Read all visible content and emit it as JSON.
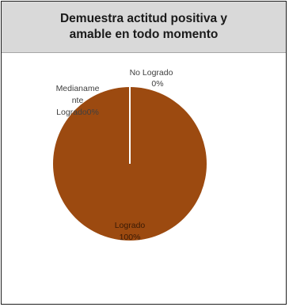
{
  "chart_data": {
    "type": "pie",
    "title": "Demuestra actitud positiva y amable en todo momento",
    "slices": [
      {
        "name": "Logrado",
        "value": 100,
        "label": "100%",
        "color": "#9c4a10"
      },
      {
        "name": "Medianamente Logrado",
        "value": 0,
        "label": "0%",
        "color": "#c0504d"
      },
      {
        "name": "No Logrado",
        "value": 0,
        "label": "0%",
        "color": "#4f81bd"
      }
    ],
    "data_labels": {
      "logrado_name": "Logrado",
      "logrado_pct": "100%",
      "no_logrado_name": "No Logrado",
      "no_logrado_pct": "0%",
      "mediana_line1": "Medianame",
      "mediana_line2": "nte",
      "mediana_line3": "Logrado0%"
    },
    "legend": "none"
  }
}
